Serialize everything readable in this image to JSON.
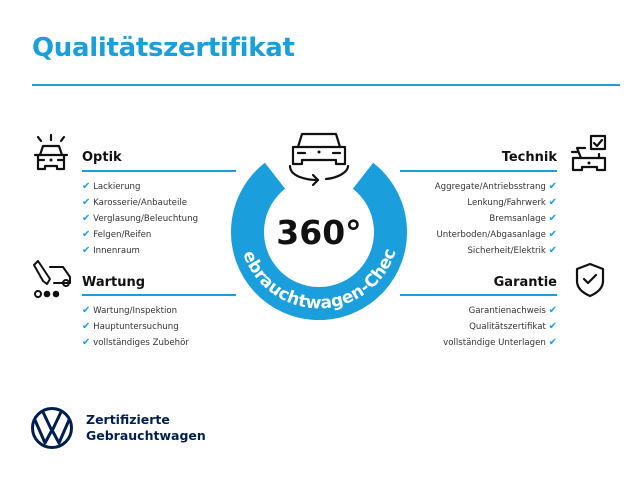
{
  "header": {
    "title": "Qualitätszertifikat"
  },
  "center": {
    "big_text": "360°",
    "ring_text": "Gebrauchtwagen-Check",
    "accent_color": "#1a9fdc",
    "icon": "car-rotate-icon"
  },
  "sections": {
    "optik": {
      "title": "Optik",
      "icon": "car-lights-icon",
      "items": [
        "Lackierung",
        "Karosserie/Anbauteile",
        "Verglasung/Beleuchtung",
        "Felgen/Reifen",
        "Innenraum"
      ]
    },
    "wartung": {
      "title": "Wartung",
      "icon": "service-car-icon",
      "items": [
        "Wartung/Inspektion",
        "Hauptuntersuchung",
        "vollständiges Zubehör"
      ]
    },
    "technik": {
      "title": "Technik",
      "icon": "car-checklist-icon",
      "items": [
        "Aggregate/Antriebsstrang",
        "Lenkung/Fahrwerk",
        "Bremsanlage",
        "Unterboden/Abgasanlage",
        "Sicherheit/Elektrik"
      ]
    },
    "garantie": {
      "title": "Garantie",
      "icon": "shield-check-icon",
      "items": [
        "Garantienachweis",
        "Qualitätszertifikat",
        "vollständige Unterlagen"
      ]
    }
  },
  "check_glyph": "✔",
  "footer": {
    "line1": "Zertifizierte",
    "line2": "Gebrauchtwagen",
    "logo": "vw-logo",
    "brand_color": "#001e50"
  }
}
